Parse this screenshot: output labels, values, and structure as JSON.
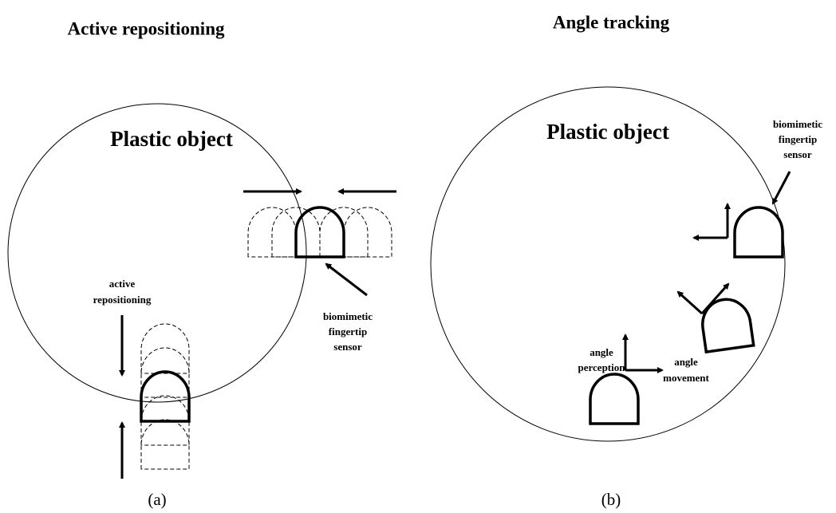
{
  "panels": [
    {
      "title": "Active repositioning",
      "object_label": "Plastic object",
      "annotations": [
        {
          "lines": [
            "active",
            "repositioning"
          ]
        },
        {
          "lines": [
            "biomimetic",
            "fingertip",
            "sensor"
          ]
        }
      ],
      "caption": "(a)"
    },
    {
      "title": "Angle tracking",
      "object_label": "Plastic object",
      "annotations": [
        {
          "lines": [
            "biomimetic",
            "fingertip",
            "sensor"
          ]
        },
        {
          "lines": [
            "angle",
            "perception"
          ]
        },
        {
          "lines": [
            "angle",
            "movement"
          ]
        }
      ],
      "caption": "(b)"
    }
  ]
}
